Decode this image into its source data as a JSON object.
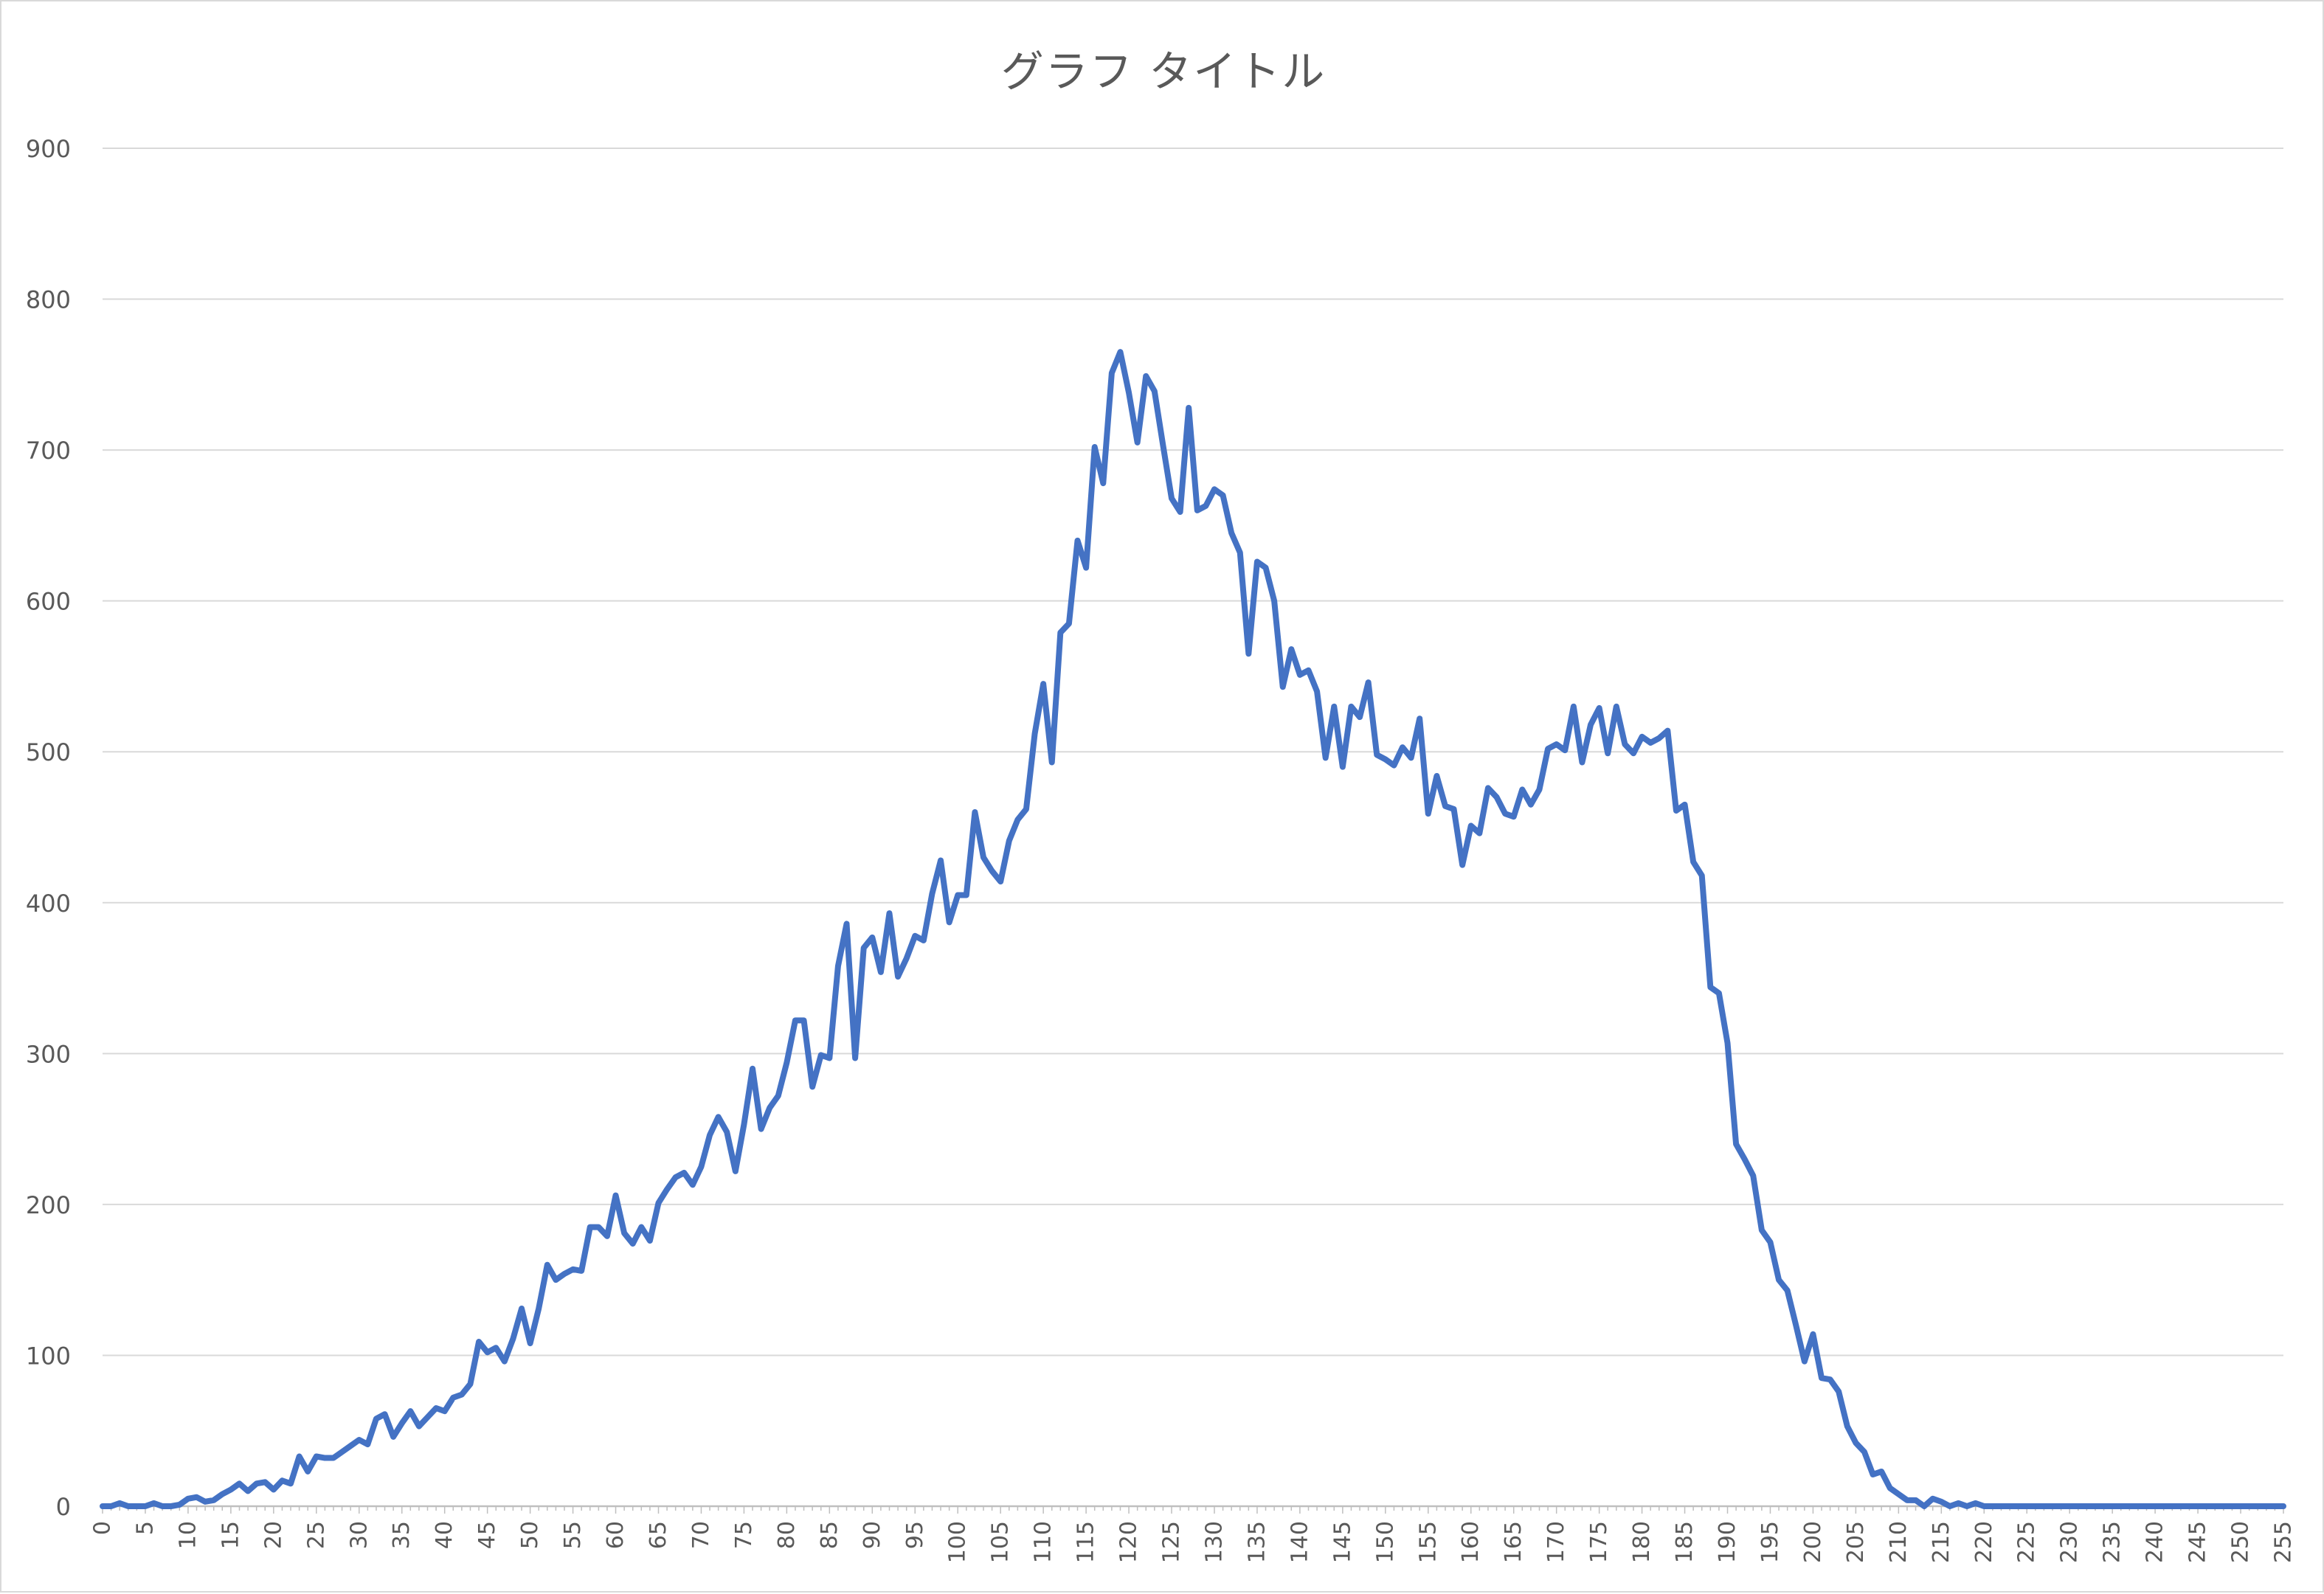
{
  "chart_data": {
    "type": "line",
    "title": "グラフ タイトル",
    "xlabel": "",
    "ylabel": "",
    "x_range": [
      0,
      255
    ],
    "xtick_step": 5,
    "ylim": [
      0,
      900
    ],
    "yticks": [
      0,
      100,
      200,
      300,
      400,
      500,
      600,
      700,
      800,
      900
    ],
    "grid": "horizontal",
    "legend": "none",
    "series": [
      {
        "color": "#4472c4",
        "values": [
          0,
          0,
          2,
          0,
          0,
          0,
          2,
          0,
          0,
          1,
          5,
          6,
          3,
          4,
          8,
          11,
          15,
          10,
          15,
          16,
          11,
          17,
          15,
          33,
          23,
          33,
          32,
          32,
          36,
          40,
          44,
          41,
          58,
          61,
          46,
          55,
          63,
          53,
          59,
          65,
          63,
          72,
          74,
          81,
          109,
          102,
          105,
          96,
          111,
          131,
          108,
          131,
          160,
          150,
          154,
          157,
          156,
          185,
          185,
          179,
          206,
          181,
          174,
          185,
          176,
          201,
          210,
          218,
          221,
          213,
          225,
          246,
          258,
          248,
          222,
          253,
          290,
          250,
          264,
          272,
          294,
          322,
          322,
          278,
          299,
          297,
          358,
          386,
          297,
          370,
          377,
          354,
          393,
          351,
          363,
          378,
          375,
          406,
          428,
          387,
          405,
          405,
          460,
          430,
          421,
          414,
          441,
          455,
          462,
          512,
          545,
          493,
          579,
          585,
          640,
          622,
          702,
          678,
          751,
          765,
          738,
          705,
          749,
          739,
          703,
          668,
          659,
          728,
          660,
          663,
          674,
          670,
          645,
          632,
          565,
          626,
          622,
          600,
          543,
          568,
          551,
          554,
          540,
          496,
          530,
          490,
          530,
          523,
          546,
          498,
          495,
          491,
          503,
          496,
          522,
          459,
          484,
          464,
          462,
          425,
          451,
          446,
          476,
          470,
          459,
          457,
          475,
          465,
          475,
          502,
          505,
          501,
          530,
          493,
          518,
          529,
          499,
          530,
          505,
          499,
          510,
          506,
          509,
          514,
          461,
          465,
          427,
          418,
          344,
          340,
          307,
          240,
          230,
          219,
          183,
          175,
          150,
          143,
          120,
          96,
          114,
          85,
          84,
          76,
          53,
          42,
          36,
          21,
          23,
          12,
          8,
          4,
          4,
          0,
          5,
          3,
          0,
          2,
          0,
          2,
          0,
          0,
          0,
          0,
          0,
          0,
          0,
          0,
          0,
          0,
          0,
          0,
          0,
          0,
          0,
          0,
          0,
          0,
          0,
          0,
          0,
          0,
          0,
          0,
          0,
          0,
          0,
          0,
          0,
          0,
          0,
          0,
          0,
          0,
          0,
          0
        ]
      }
    ]
  }
}
